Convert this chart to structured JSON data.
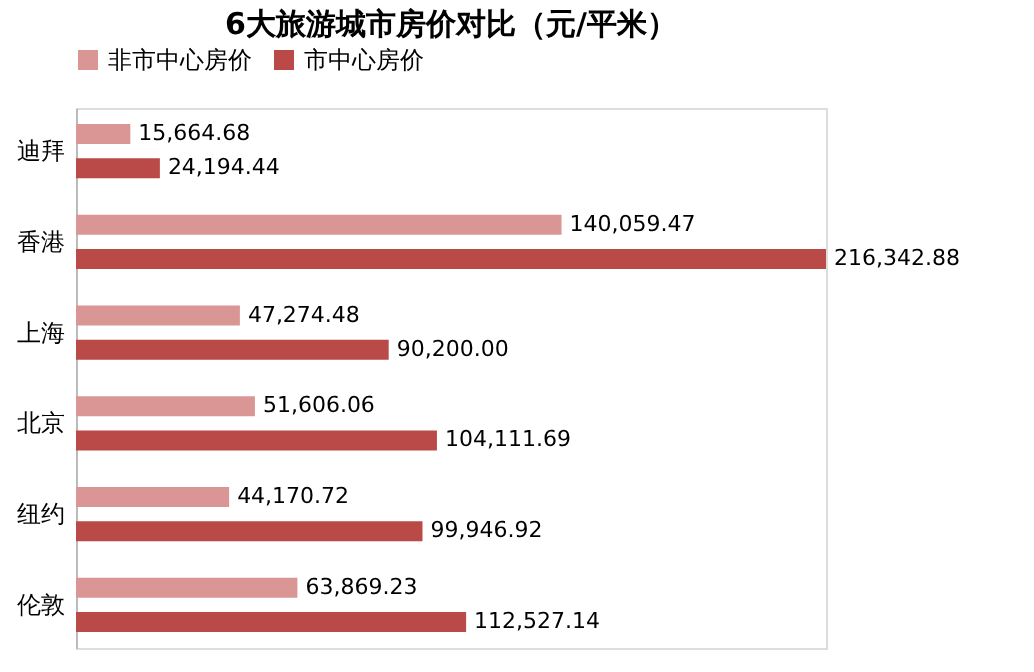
{
  "chart_data": {
    "type": "bar",
    "orientation": "horizontal",
    "title": "6大旅游城市房价对比（元/平米）",
    "categories": [
      "迪拜",
      "香港",
      "上海",
      "北京",
      "纽约",
      "伦敦"
    ],
    "series": [
      {
        "name": "非市中心房价",
        "color": "#d99694",
        "values": [
          15664.68,
          140059.47,
          47274.48,
          51606.06,
          44170.72,
          63869.23
        ],
        "value_labels": [
          "15,664.68",
          "140,059.47",
          "47,274.48",
          "51,606.06",
          "44,170.72",
          "63,869.23"
        ]
      },
      {
        "name": "市中心房价",
        "color": "#b94a48",
        "values": [
          24194.44,
          216342.88,
          90200.0,
          104111.69,
          99946.92,
          112527.14
        ],
        "value_labels": [
          "24,194.44",
          "216,342.88",
          "90,200.00",
          "104,111.69",
          "99,946.92",
          "112,527.14"
        ]
      }
    ],
    "legend": "top",
    "grid": false
  }
}
